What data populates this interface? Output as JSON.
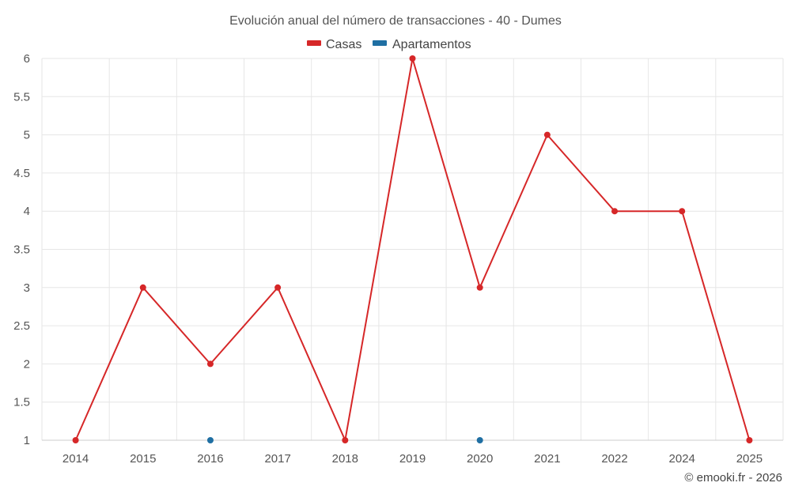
{
  "chart_data": {
    "type": "line",
    "title": "Evolución anual del número de transacciones - 40 - Dumes",
    "xlabel": "",
    "ylabel": "",
    "categories": [
      "2014",
      "2015",
      "2016",
      "2017",
      "2018",
      "2019",
      "2020",
      "2021",
      "2022",
      "2024",
      "2025"
    ],
    "ylim": [
      1,
      6
    ],
    "yticks": [
      "1",
      "1.5",
      "2",
      "2.5",
      "3",
      "3.5",
      "4",
      "4.5",
      "5",
      "5.5",
      "6"
    ],
    "grid": true,
    "legend_position": "top-center",
    "series": [
      {
        "name": "Casas",
        "color": "#d62728",
        "values": [
          1,
          3,
          2,
          3,
          1,
          6,
          3,
          5,
          4,
          4,
          1
        ]
      },
      {
        "name": "Apartamentos",
        "color": "#1f6fa3",
        "values": [
          null,
          null,
          1,
          null,
          null,
          null,
          1,
          null,
          null,
          null,
          null
        ]
      }
    ]
  },
  "credit": "© emooki.fr - 2026"
}
